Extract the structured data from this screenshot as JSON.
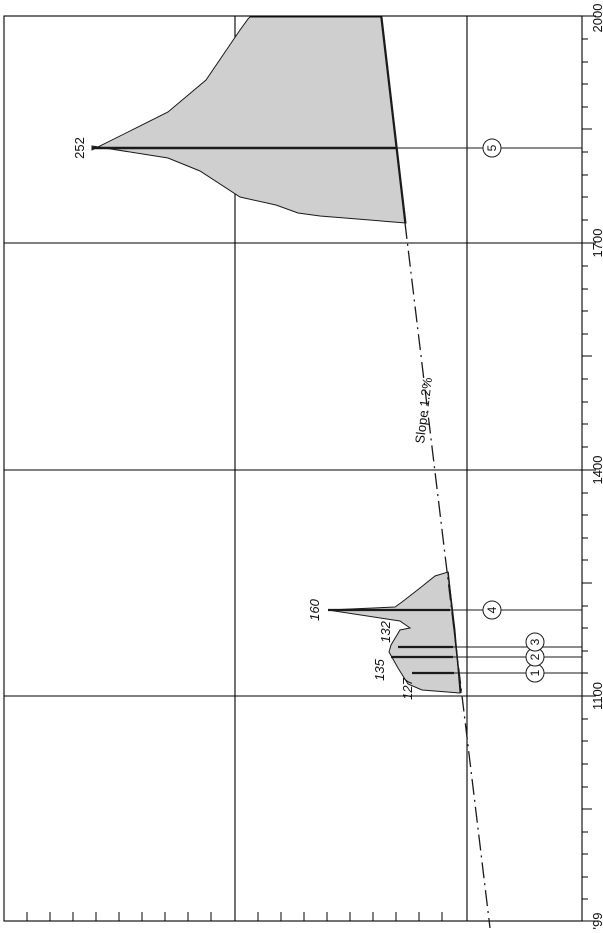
{
  "figure": {
    "axis_ticks": [
      "'99",
      "1100",
      "1400",
      "1700",
      "2000"
    ],
    "slope_label": "Slope 1.2%",
    "peaks": [
      {
        "label": "127"
      },
      {
        "label": "135"
      },
      {
        "label": "132"
      },
      {
        "label": "160"
      },
      {
        "label": "252"
      }
    ],
    "markers": [
      "1",
      "2",
      "3",
      "4",
      "5"
    ],
    "colors": {
      "fill": "#cfcfcf",
      "line": "#1a1a1a",
      "grid": "#000000",
      "background": "#ffffff"
    }
  }
}
